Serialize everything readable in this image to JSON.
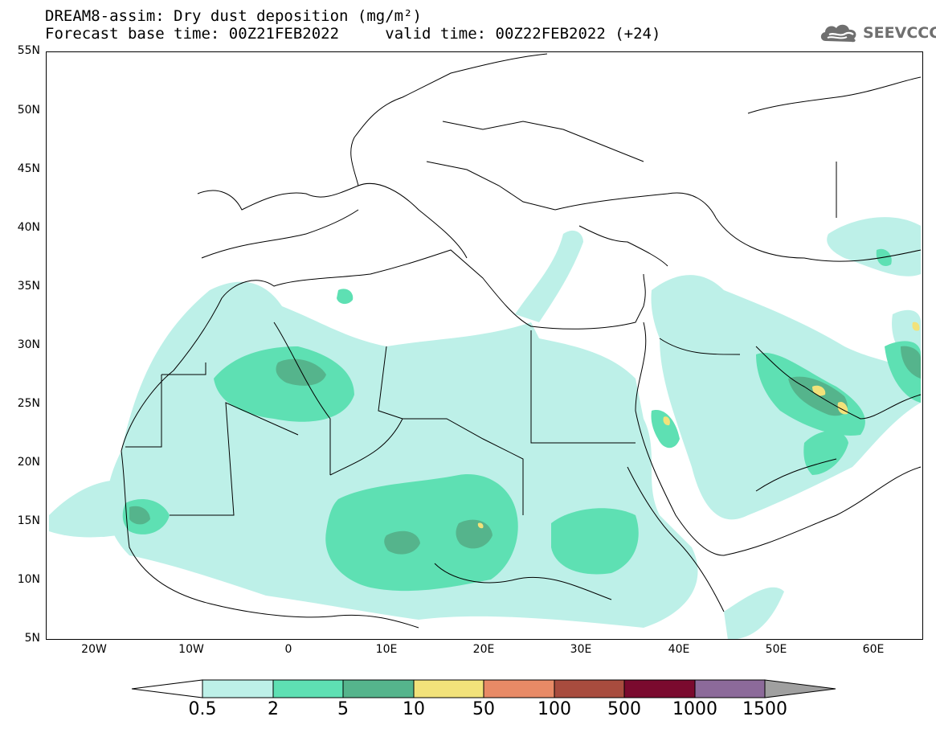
{
  "header": {
    "title": "DREAM8-assim: Dry dust deposition (mg/m²)",
    "subtitle_left": "Forecast base time: 00Z21FEB2022",
    "subtitle_right": "valid time: 00Z22FEB2022 (+24)",
    "logo_text": "SEEVCCC",
    "logo_icon": "cloud-icon"
  },
  "map": {
    "lat_labels": [
      "55N",
      "50N",
      "45N",
      "40N",
      "35N",
      "30N",
      "25N",
      "20N",
      "15N",
      "10N",
      "5N"
    ],
    "lon_labels": [
      "20W",
      "10W",
      "0",
      "10E",
      "20E",
      "30E",
      "40E",
      "50E",
      "60E"
    ],
    "lon_range": [
      -25,
      65
    ],
    "lat_range": [
      5,
      55
    ]
  },
  "legend": {
    "labels": [
      "0.5",
      "2",
      "5",
      "10",
      "50",
      "100",
      "500",
      "1000",
      "1500"
    ],
    "colors": [
      "#bdf0e8",
      "#5ee0b3",
      "#55b48c",
      "#f2e27a",
      "#e88a66",
      "#a84c3e",
      "#7a0a2e",
      "#8c6a9a",
      "#a0a0a0"
    ],
    "under_color": "#ffffff",
    "over_color": "#a0a0a0"
  }
}
